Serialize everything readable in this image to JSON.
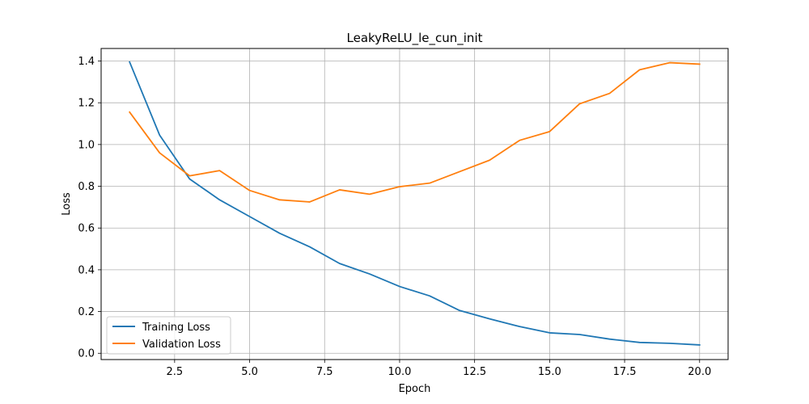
{
  "chart_data": {
    "type": "line",
    "title": "LeakyReLU_le_cun_init",
    "xlabel": "Epoch",
    "ylabel": "Loss",
    "xlim": [
      0.05,
      20.95
    ],
    "ylim": [
      -0.03,
      1.46
    ],
    "xticks": [
      2.5,
      5.0,
      7.5,
      10.0,
      12.5,
      15.0,
      17.5,
      20.0
    ],
    "xtick_labels": [
      "2.5",
      "5.0",
      "7.5",
      "10.0",
      "12.5",
      "15.0",
      "17.5",
      "20.0"
    ],
    "yticks": [
      0.0,
      0.2,
      0.4,
      0.6,
      0.8,
      1.0,
      1.2,
      1.4
    ],
    "ytick_labels": [
      "0.0",
      "0.2",
      "0.4",
      "0.6",
      "0.8",
      "1.0",
      "1.2",
      "1.4"
    ],
    "grid": true,
    "legend_position": "lower-left",
    "x": [
      1,
      2,
      3,
      4,
      5,
      6,
      7,
      8,
      9,
      10,
      11,
      12,
      13,
      14,
      15,
      16,
      17,
      18,
      19,
      20
    ],
    "series": [
      {
        "name": "Training Loss",
        "color": "#1f77b4",
        "values": [
          1.395,
          1.045,
          0.835,
          0.735,
          0.655,
          0.575,
          0.51,
          0.43,
          0.38,
          0.32,
          0.275,
          0.205,
          0.165,
          0.128,
          0.098,
          0.09,
          0.068,
          0.052,
          0.048,
          0.04
        ]
      },
      {
        "name": "Validation Loss",
        "color": "#ff7f0e",
        "values": [
          1.155,
          0.96,
          0.85,
          0.875,
          0.78,
          0.735,
          0.725,
          0.783,
          0.762,
          0.798,
          0.815,
          0.87,
          0.925,
          1.02,
          1.062,
          1.195,
          1.245,
          1.358,
          1.392,
          1.385
        ]
      }
    ]
  }
}
